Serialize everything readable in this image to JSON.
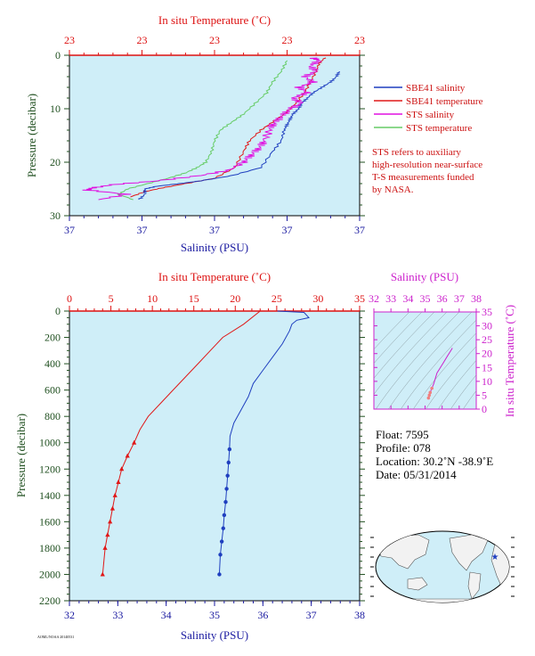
{
  "float_info": {
    "float_line": "Float:  7595",
    "profile_line": "Profile:  078",
    "location_line": "Location:  30.2˚N  -38.9˚E",
    "date_line": "Date:  05/31/2014"
  },
  "note": {
    "line1": "STS refers to auxiliary",
    "line2": "high-resolution near-surface",
    "line3": "T-S measurements funded",
    "line4": "by NASA."
  },
  "footer_tiny": "AOML/NOAA 20140531",
  "colors": {
    "plot_bg": "#cfeef8",
    "sbe_salinity": "#1f3fbf",
    "sbe_temperature": "#e01818",
    "sts_salinity": "#e010e0",
    "sts_temperature": "#66cc66",
    "temp_axis": "#dd1111",
    "sal_axis": "#1a1aa0",
    "pressure_axis": "#1f4f1f",
    "ts_axis": "#cc22cc"
  },
  "chart_data": [
    {
      "type": "line",
      "title": "",
      "top_axis_label": "In situ Temperature (˚C)",
      "top_ticks": [
        "23",
        "23",
        "23",
        "23",
        "23"
      ],
      "bottom_axis_label": "Salinity (PSU)",
      "bottom_ticks": [
        "37",
        "37",
        "37",
        "37",
        "37"
      ],
      "left_axis_label": "Pressure (decibar)",
      "left_ticks": [
        "0",
        "10",
        "20",
        "30"
      ],
      "y_range": [
        0,
        30
      ],
      "legend": {
        "placement": "right",
        "entries": [
          {
            "label": "SBE41 salinity",
            "color": "#1f3fbf"
          },
          {
            "label": "SBE41 temperature",
            "color": "#e01818"
          },
          {
            "label": "STS salinity",
            "color": "#e010e0"
          },
          {
            "label": "STS temperature",
            "color": "#66cc66"
          }
        ]
      },
      "series": [
        {
          "name": "SBE41 salinity",
          "x_frac": [
            0.93,
            0.92,
            0.9,
            0.87,
            0.84,
            0.82,
            0.8,
            0.79,
            0.77,
            0.76,
            0.75,
            0.74,
            0.73,
            0.7,
            0.66,
            0.56,
            0.45,
            0.38,
            0.3,
            0.26,
            0.26,
            0.24
          ],
          "pressure": [
            3,
            4,
            5,
            6,
            7,
            8,
            9,
            10,
            11,
            12,
            13,
            14,
            16,
            18,
            21,
            22.5,
            23.5,
            24,
            24.5,
            25,
            26,
            27
          ]
        },
        {
          "name": "SBE41 temperature",
          "x_frac": [
            0.88,
            0.86,
            0.85,
            0.83,
            0.81,
            0.78,
            0.74,
            0.7,
            0.66,
            0.62,
            0.6,
            0.57,
            0.5,
            0.4,
            0.32,
            0.26,
            0.21
          ],
          "pressure": [
            0.5,
            1.5,
            3,
            5,
            7,
            9,
            11,
            12.5,
            14,
            16,
            18,
            21,
            23,
            24,
            24.8,
            25.5,
            26.5
          ]
        },
        {
          "name": "STS salinity",
          "x_frac": [
            0.84,
            0.86,
            0.83,
            0.85,
            0.81,
            0.84,
            0.79,
            0.82,
            0.77,
            0.8,
            0.76,
            0.74,
            0.72,
            0.7,
            0.69,
            0.67,
            0.66,
            0.64,
            0.62,
            0.6,
            0.55,
            0.45,
            0.3,
            0.15,
            0.08,
            0.06,
            0.2,
            0.1
          ],
          "pressure": [
            0.5,
            1,
            2,
            3,
            4,
            5,
            6,
            7,
            8,
            9,
            10,
            11,
            12,
            13,
            14,
            16,
            17,
            18,
            19,
            20,
            21.5,
            22.5,
            23.5,
            24.2,
            24.8,
            25.2,
            26,
            27
          ]
        },
        {
          "name": "STS temperature",
          "x_frac": [
            0.75,
            0.73,
            0.7,
            0.68,
            0.64,
            0.6,
            0.56,
            0.52,
            0.5,
            0.49,
            0.47,
            0.44,
            0.4,
            0.34,
            0.27,
            0.2,
            0.17,
            0.22
          ],
          "pressure": [
            1,
            3,
            5,
            7,
            9,
            11,
            12.5,
            14,
            16,
            18,
            20,
            21,
            22,
            23,
            24,
            25,
            26,
            27
          ]
        }
      ]
    },
    {
      "type": "line",
      "title": "",
      "top_axis_label": "In situ Temperature (˚C)",
      "top_ticks": [
        "0",
        "5",
        "10",
        "15",
        "20",
        "25",
        "30",
        "35"
      ],
      "x_temp_range": [
        0,
        35
      ],
      "bottom_axis_label": "Salinity (PSU)",
      "bottom_ticks": [
        "32",
        "33",
        "34",
        "35",
        "36",
        "37",
        "38"
      ],
      "x_sal_range": [
        32,
        38
      ],
      "left_axis_label": "Pressure (decibar)",
      "left_ticks": [
        "0",
        "200",
        "400",
        "600",
        "800",
        "1000",
        "1200",
        "1400",
        "1600",
        "1800",
        "2000",
        "2200"
      ],
      "y_range": [
        0,
        2200
      ],
      "series": [
        {
          "name": "SBE41 salinity",
          "salinity": [
            36.3,
            36.85,
            36.95,
            36.7,
            36.6,
            36.55,
            36.4,
            36.2,
            36.0,
            35.8,
            35.7,
            35.55,
            35.4,
            35.32,
            35.31,
            35.29,
            35.27,
            35.25,
            35.23,
            35.2,
            35.18,
            35.15,
            35.12,
            35.1
          ],
          "pressure": [
            0,
            10,
            50,
            70,
            100,
            150,
            250,
            350,
            450,
            550,
            650,
            750,
            850,
            950,
            1050,
            1150,
            1250,
            1350,
            1450,
            1550,
            1650,
            1750,
            1850,
            2000
          ]
        },
        {
          "name": "SBE41 temperature",
          "temperature": [
            23.0,
            21.0,
            18.5,
            17.0,
            15.5,
            14.0,
            12.5,
            11.0,
            9.5,
            8.5,
            7.8,
            7.0,
            6.3,
            5.9,
            5.5,
            5.2,
            4.9,
            4.6,
            4.3,
            4.0
          ],
          "pressure": [
            0,
            100,
            200,
            300,
            400,
            500,
            600,
            700,
            800,
            900,
            1000,
            1100,
            1200,
            1300,
            1400,
            1500,
            1600,
            1700,
            1800,
            2000
          ]
        }
      ]
    },
    {
      "type": "line",
      "title": "",
      "top_axis_label": "Salinity (PSU)",
      "top_ticks": [
        "32",
        "33",
        "34",
        "35",
        "36",
        "37",
        "38"
      ],
      "x_range": [
        32,
        38
      ],
      "right_axis_label": "In situ Temperature (˚C)",
      "right_ticks": [
        "0",
        "5",
        "10",
        "15",
        "20",
        "25",
        "30",
        "35"
      ],
      "y_range": [
        0,
        35
      ],
      "series": [
        {
          "name": "T-S",
          "salinity": [
            36.6,
            36.5,
            36.3,
            36.1,
            35.9,
            35.7,
            35.6,
            35.5,
            35.4,
            35.3,
            35.25,
            35.2
          ],
          "temperature": [
            22,
            21,
            19,
            17,
            15,
            13,
            11,
            9,
            7.5,
            6,
            5,
            4
          ]
        }
      ]
    }
  ]
}
